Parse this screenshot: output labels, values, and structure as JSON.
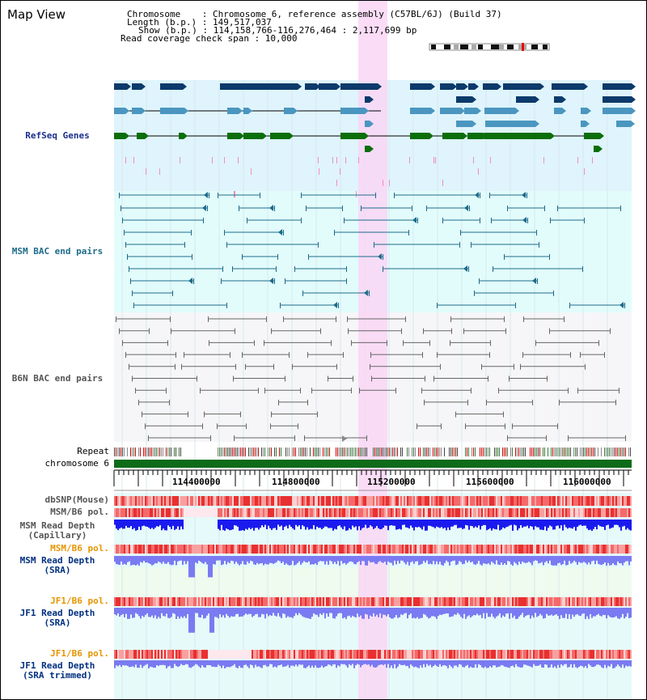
{
  "view_title": "Map View",
  "info": {
    "chromosome_line": "Chromosome    : Chromosome 6, reference assembly (C57BL/6J) (Build 37)",
    "length_line": "Length (b.p.) : 149,517,037",
    "show_line": "Show (b.p.) : 114,158,766-116,276,464 : 2,117,699 bp",
    "coverage_line": "Read coverage check span : 10,000"
  },
  "tracks": {
    "refseq": "RefSeq Genes",
    "msm_bac": "MSM BAC end pairs",
    "b6n_bac": "B6N BAC end pairs",
    "repeat": "Repeat",
    "chromosome": "chromosome 6",
    "dbsnp": "dbSNP(Mouse)",
    "msm_b6_pol_1": "MSM/B6 pol.",
    "msm_read_depth_cap": "MSM Read Depth\n(Capillary)",
    "msm_b6_pol_2": "MSM/B6 pol.",
    "msm_read_depth_sra": "MSM Read Depth\n(SRA)",
    "jf1_b6_pol_1": "JF1/B6 pol.",
    "jf1_read_depth_sra": "JF1 Read Depth\n(SRA)",
    "jf1_b6_pol_2": "JF1/B6 pol.",
    "jf1_read_depth_trim": "JF1 Read Depth\n(SRA trimmed)"
  },
  "axis": {
    "ticks": [
      "114400000",
      "114800000",
      "115200000",
      "115600000",
      "116000000"
    ]
  },
  "colors": {
    "refseq_bg": "#dff4fc",
    "msm_bg": "#e2fcfc",
    "b6n_bg": "#f6f6f8",
    "highlight": "#f9d6f4",
    "dark_gene": "#0c3a6b",
    "mid_gene": "#4a96c0",
    "green_gene": "#0b6e0b",
    "msm_line": "#1d6b8a",
    "b6n_line": "#666666",
    "chrom_bar": "#0d6b1a",
    "read_depth_blue": "#1a1aee",
    "sra_blue": "#7a7af2",
    "msm_label": "#1a2f8a",
    "orange_label": "#e69500",
    "dark_label": "#003080"
  }
}
